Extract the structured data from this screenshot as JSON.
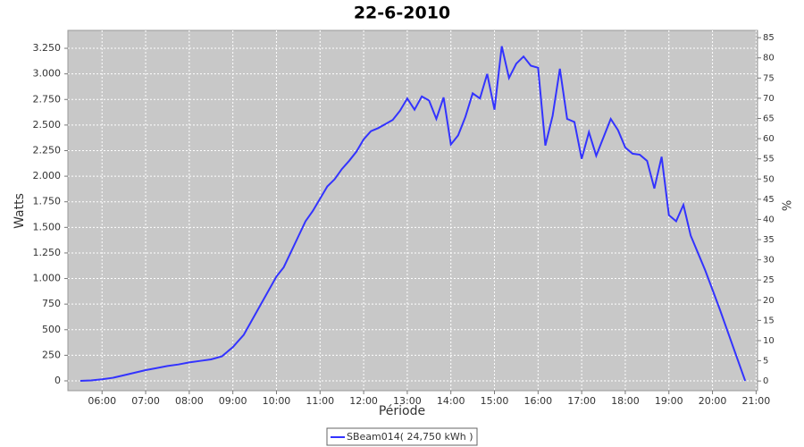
{
  "chart_data": {
    "type": "line",
    "title": "22-6-2010",
    "xlabel": "Période",
    "ylabel": "Watts",
    "y2label": "%",
    "x": [
      "05:30",
      "05:45",
      "06:00",
      "06:15",
      "06:30",
      "06:45",
      "07:00",
      "07:15",
      "07:30",
      "07:45",
      "08:00",
      "08:15",
      "08:30",
      "08:45",
      "09:00",
      "09:15",
      "09:30",
      "09:45",
      "10:00",
      "10:10",
      "10:20",
      "10:30",
      "10:40",
      "10:50",
      "11:00",
      "11:10",
      "11:20",
      "11:30",
      "11:40",
      "11:50",
      "12:00",
      "12:10",
      "12:20",
      "12:30",
      "12:40",
      "12:50",
      "13:00",
      "13:10",
      "13:20",
      "13:30",
      "13:40",
      "13:50",
      "14:00",
      "14:10",
      "14:20",
      "14:30",
      "14:40",
      "14:50",
      "15:00",
      "15:10",
      "15:20",
      "15:30",
      "15:40",
      "15:50",
      "16:00",
      "16:10",
      "16:20",
      "16:30",
      "16:40",
      "16:50",
      "17:00",
      "17:10",
      "17:20",
      "17:30",
      "17:40",
      "17:50",
      "18:00",
      "18:10",
      "18:20",
      "18:30",
      "18:40",
      "18:50",
      "19:00",
      "19:10",
      "19:20",
      "19:30",
      "19:40",
      "19:50",
      "20:00",
      "20:10",
      "20:20",
      "20:30",
      "20:40",
      "20:45"
    ],
    "series": [
      {
        "name": "SBeam014( 24,750 kWh )",
        "color": "#3333ff",
        "values": [
          0,
          5,
          15,
          30,
          55,
          80,
          105,
          125,
          145,
          160,
          180,
          195,
          210,
          240,
          330,
          450,
          640,
          830,
          1020,
          1110,
          1260,
          1410,
          1560,
          1660,
          1780,
          1900,
          1970,
          2070,
          2150,
          2240,
          2360,
          2440,
          2470,
          2510,
          2550,
          2640,
          2760,
          2650,
          2780,
          2740,
          2560,
          2770,
          2310,
          2400,
          2580,
          2810,
          2760,
          3000,
          2650,
          3270,
          2960,
          3100,
          3170,
          3080,
          3060,
          2300,
          2590,
          3050,
          2560,
          2530,
          2170,
          2430,
          2200,
          2380,
          2560,
          2450,
          2280,
          2220,
          2210,
          2150,
          1880,
          2190,
          1620,
          1560,
          1720,
          1420,
          1250,
          1080,
          890,
          700,
          500,
          300,
          100,
          0
        ]
      }
    ],
    "xlim": [
      "05:13",
      "21:02"
    ],
    "xticks": [
      "06:00",
      "07:00",
      "08:00",
      "09:00",
      "10:00",
      "11:00",
      "12:00",
      "13:00",
      "14:00",
      "15:00",
      "16:00",
      "17:00",
      "18:00",
      "19:00",
      "20:00",
      "21:00"
    ],
    "ylim": [
      -96,
      3425
    ],
    "yticks": [
      0,
      250,
      500,
      750,
      {
        "value": 1000,
        "label": "1.000"
      },
      {
        "value": 1250,
        "label": "1.250"
      },
      {
        "value": 1500,
        "label": "1.500"
      },
      {
        "value": 1750,
        "label": "1.750"
      },
      {
        "value": 2000,
        "label": "2.000"
      },
      {
        "value": 2250,
        "label": "2.250"
      },
      {
        "value": 2500,
        "label": "2.500"
      },
      {
        "value": 2750,
        "label": "2.750"
      },
      {
        "value": 3000,
        "label": "3.000"
      },
      {
        "value": 3250,
        "label": "3.250"
      }
    ],
    "y2lim": [
      -2.4,
      86.8
    ],
    "y2ticks": [
      0,
      5,
      10,
      15,
      20,
      25,
      30,
      35,
      40,
      45,
      50,
      55,
      60,
      65,
      70,
      75,
      80,
      85
    ],
    "grid": true
  }
}
